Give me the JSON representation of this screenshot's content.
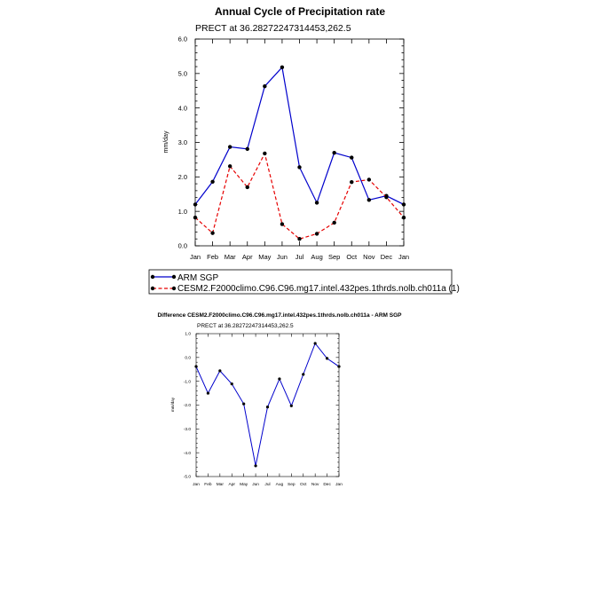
{
  "colors": {
    "obs": "#0000cc",
    "model": "#e60000",
    "diff": "#0000cc"
  },
  "chart_data": [
    {
      "type": "line",
      "title": "Annual Cycle of Precipitation rate",
      "subtitle": "PRECT at 36.28272247314453,262.5",
      "xlabel": "",
      "ylabel": "mm/day",
      "categories": [
        "Jan",
        "Feb",
        "Mar",
        "Apr",
        "May",
        "Jun",
        "Jul",
        "Aug",
        "Sep",
        "Oct",
        "Nov",
        "Dec",
        "Jan"
      ],
      "ylim": [
        0,
        6
      ],
      "yticks": [
        "0.0",
        "1.0",
        "2.0",
        "3.0",
        "4.0",
        "5.0",
        "6.0"
      ],
      "series": [
        {
          "name": "ARM SGP",
          "style": "solid",
          "values": [
            1.2,
            1.86,
            2.87,
            2.81,
            4.63,
            5.18,
            2.28,
            1.25,
            2.7,
            2.56,
            1.33,
            1.45,
            1.2
          ]
        },
        {
          "name": "CESM2.F2000climo.C96.C96.mg17.intel.432pes.1thrds.nolb.ch011a (1)",
          "style": "dashed",
          "values": [
            0.82,
            0.37,
            2.31,
            1.7,
            2.68,
            0.63,
            0.2,
            0.35,
            0.67,
            1.85,
            1.92,
            1.41,
            0.82
          ]
        }
      ]
    },
    {
      "type": "line",
      "title": "Difference CESM2.F2000climo.C96.C96.mg17.intel.432pes.1thrds.nolb.ch011a - ARM SGP",
      "subtitle": "PRECT at 36.28272247314453,262.5",
      "xlabel": "",
      "ylabel": "mm/day",
      "categories": [
        "Jan",
        "Feb",
        "Mar",
        "Apr",
        "May",
        "Jun",
        "Jul",
        "Aug",
        "Sep",
        "Oct",
        "Nov",
        "Dec",
        "Jan"
      ],
      "ylim": [
        -5,
        1
      ],
      "yticks": [
        "-5.0",
        "-4.0",
        "-3.0",
        "-2.0",
        "-1.0",
        "0.0",
        "1.0"
      ],
      "series": [
        {
          "style": "solid",
          "values": [
            -0.38,
            -1.5,
            -0.56,
            -1.11,
            -1.95,
            -4.55,
            -2.08,
            -0.9,
            -2.03,
            -0.71,
            0.59,
            -0.04,
            -0.38
          ]
        }
      ]
    }
  ]
}
